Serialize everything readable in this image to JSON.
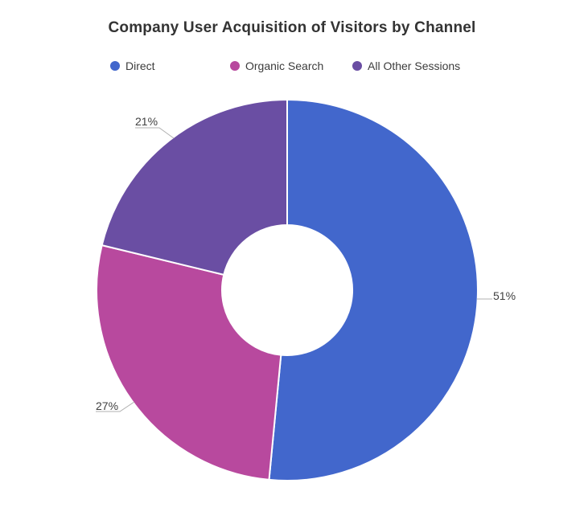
{
  "chart_data": {
    "type": "pie",
    "variant": "donut",
    "title": "Company User Acquisition of Visitors by Channel",
    "slices": [
      {
        "label": "Direct",
        "value": 51,
        "display": "51%",
        "color": "#4267CC"
      },
      {
        "label": "Organic Search",
        "value": 27,
        "display": "27%",
        "color": "#B8499E"
      },
      {
        "label": "All Other Sessions",
        "value": 21,
        "display": "21%",
        "color": "#6A4EA3"
      }
    ],
    "unit": "percent",
    "hole_ratio": 0.34,
    "legend_position": "top",
    "start_angle": "12-oclock",
    "direction": "clockwise",
    "background_color": "#FFFFFF",
    "title_color": "#333333",
    "label_color": "#404040",
    "leader_line_color": "#B0B0B0",
    "slice_border_color": "#FFFFFF"
  }
}
